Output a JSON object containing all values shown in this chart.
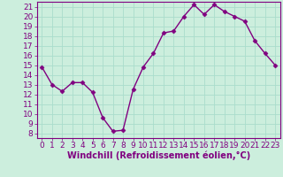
{
  "x": [
    0,
    1,
    2,
    3,
    4,
    5,
    6,
    7,
    8,
    9,
    10,
    11,
    12,
    13,
    14,
    15,
    16,
    17,
    18,
    19,
    20,
    21,
    22,
    23
  ],
  "y": [
    14.8,
    13.0,
    12.3,
    13.2,
    13.2,
    12.2,
    9.6,
    8.2,
    8.3,
    12.5,
    14.8,
    16.2,
    18.3,
    18.5,
    20.0,
    21.2,
    20.2,
    21.2,
    20.5,
    20.0,
    19.5,
    17.5,
    16.2,
    15.0
  ],
  "line_color": "#800080",
  "marker": "D",
  "marker_size": 2.5,
  "bg_color": "#cceedd",
  "grid_color": "#aaddcc",
  "xlabel": "Windchill (Refroidissement éolien,°C)",
  "ylabel": "",
  "ylim_min": 7.5,
  "ylim_max": 21.5,
  "xlim_min": -0.5,
  "xlim_max": 23.5,
  "yticks": [
    8,
    9,
    10,
    11,
    12,
    13,
    14,
    15,
    16,
    17,
    18,
    19,
    20,
    21
  ],
  "xticks": [
    0,
    1,
    2,
    3,
    4,
    5,
    6,
    7,
    8,
    9,
    10,
    11,
    12,
    13,
    14,
    15,
    16,
    17,
    18,
    19,
    20,
    21,
    22,
    23
  ],
  "tick_color": "#800080",
  "label_color": "#800080",
  "font_size": 6.5,
  "xlabel_fontsize": 7,
  "linewidth": 1.0
}
